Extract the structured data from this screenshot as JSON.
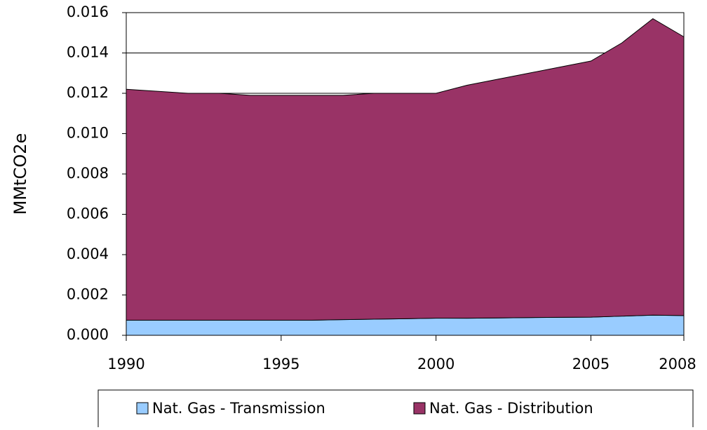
{
  "chart_data": {
    "type": "stacked-area",
    "y_label": "MMtCO2e",
    "x": [
      1990,
      1991,
      1992,
      1993,
      1994,
      1995,
      1996,
      1997,
      1998,
      1999,
      2000,
      2001,
      2002,
      2003,
      2004,
      2005,
      2006,
      2007,
      2008
    ],
    "series": [
      {
        "name": "Nat. Gas - Transmission",
        "color": "#99ccff",
        "values": [
          0.00075,
          0.00075,
          0.00075,
          0.00075,
          0.00075,
          0.00075,
          0.00075,
          0.00078,
          0.0008,
          0.00082,
          0.00085,
          0.00085,
          0.00086,
          0.00088,
          0.00089,
          0.0009,
          0.00095,
          0.001,
          0.00098
        ]
      },
      {
        "name": "Nat. Gas - Distribution",
        "color": "#993366",
        "values": [
          0.01145,
          0.01135,
          0.01125,
          0.01125,
          0.01115,
          0.01115,
          0.01115,
          0.01112,
          0.0112,
          0.01118,
          0.01115,
          0.01155,
          0.01184,
          0.01212,
          0.01241,
          0.0127,
          0.01355,
          0.0147,
          0.01382
        ]
      }
    ],
    "xlim": [
      1990,
      2008
    ],
    "xticks": [
      1990,
      1995,
      2000,
      2005,
      2008
    ],
    "ylim": [
      0,
      0.016
    ],
    "yticks": [
      {
        "value": 0,
        "label": "0.000"
      },
      {
        "value": 0.002,
        "label": "0.002"
      },
      {
        "value": 0.004,
        "label": "0.004"
      },
      {
        "value": 0.006,
        "label": "0.006"
      },
      {
        "value": 0.008,
        "label": "0.008"
      },
      {
        "value": 0.01,
        "label": "0.010"
      },
      {
        "value": 0.012,
        "label": "0.012"
      },
      {
        "value": 0.014,
        "label": "0.014"
      },
      {
        "value": 0.016,
        "label": "0.016"
      }
    ],
    "grid": true
  }
}
